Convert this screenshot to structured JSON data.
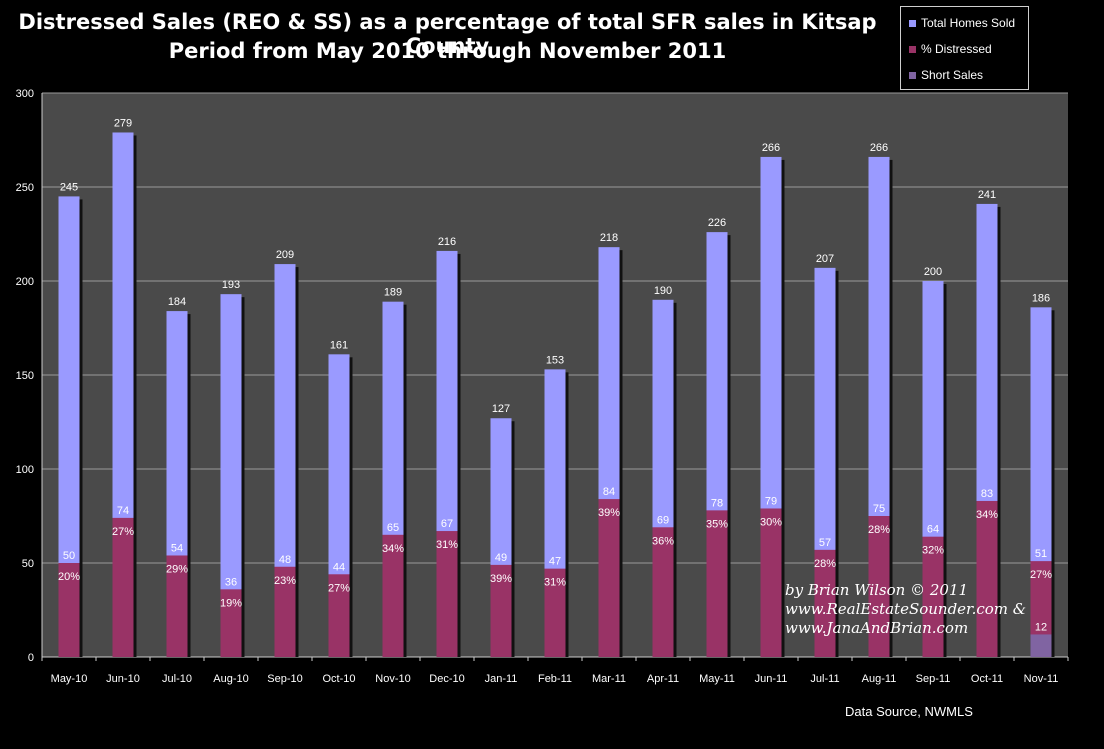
{
  "chart_data": {
    "type": "bar",
    "title_line1": "Distressed Sales (REO & SS) as a percentage of total SFR sales in Kitsap County",
    "title_line2": "Period from May 2010 through November 2011",
    "categories": [
      "May-10",
      "Jun-10",
      "Jul-10",
      "Aug-10",
      "Sep-10",
      "Oct-10",
      "Nov-10",
      "Dec-10",
      "Jan-11",
      "Feb-11",
      "Mar-11",
      "Apr-11",
      "May-11",
      "Jun-11",
      "Jul-11",
      "Aug-11",
      "Sep-11",
      "Oct-11",
      "Nov-11"
    ],
    "series": [
      {
        "name": "Total Homes Sold",
        "color": "#9a9aff",
        "values": [
          245,
          279,
          184,
          193,
          209,
          161,
          189,
          216,
          127,
          153,
          218,
          190,
          226,
          266,
          207,
          266,
          200,
          241,
          186
        ]
      },
      {
        "name": "% Distressed",
        "color": "#993366",
        "values": [
          50,
          74,
          54,
          36,
          48,
          44,
          65,
          67,
          49,
          47,
          84,
          69,
          78,
          79,
          57,
          75,
          64,
          83,
          51
        ],
        "percent_labels": [
          "20%",
          "27%",
          "29%",
          "19%",
          "23%",
          "27%",
          "34%",
          "31%",
          "39%",
          "31%",
          "39%",
          "36%",
          "35%",
          "30%",
          "28%",
          "28%",
          "32%",
          "34%",
          "27%"
        ]
      },
      {
        "name": "Short Sales",
        "color": "#8064a2",
        "values": [
          null,
          null,
          null,
          null,
          null,
          null,
          null,
          null,
          null,
          null,
          null,
          null,
          null,
          null,
          null,
          null,
          null,
          null,
          12
        ]
      }
    ],
    "ylim": [
      0,
      300
    ],
    "yticks": [
      0,
      50,
      100,
      150,
      200,
      250,
      300
    ],
    "grid": true,
    "legend_placement": "top-right"
  },
  "source_text": "Data Source, NWMLS",
  "watermark": {
    "line1": "by Brian Wilson © 2011",
    "line2": "www.RealEstateSounder.com &",
    "line3": "www.JanaAndBrian.com"
  }
}
